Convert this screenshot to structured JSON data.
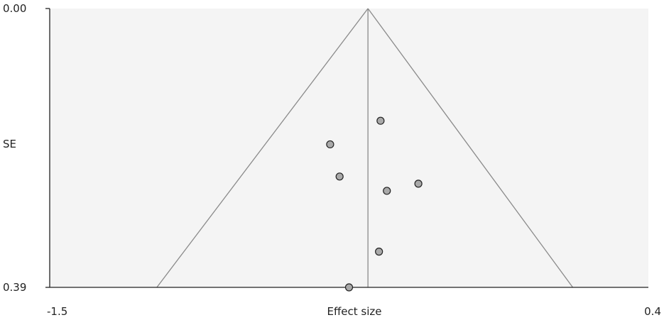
{
  "chart_data": {
    "type": "scatter",
    "title": "",
    "xlabel": "Effect size",
    "ylabel": "SE",
    "xlim": [
      -1.5,
      0.4
    ],
    "ylim": [
      0.0,
      0.39
    ],
    "y_inverted": true,
    "x_tick_labels": [
      "-1.5",
      "0.4"
    ],
    "y_tick_labels": [
      "0.00",
      "0.39"
    ],
    "pooled_effect": -0.49,
    "funnel_lower_x_at_max_se": -1.16,
    "funnel_upper_x_at_max_se": 0.16,
    "grid": false,
    "legend": "none",
    "series": [
      {
        "points": [
          {
            "x": -0.61,
            "y": 0.19
          },
          {
            "x": -0.58,
            "y": 0.235
          },
          {
            "x": -0.45,
            "y": 0.157
          },
          {
            "x": -0.43,
            "y": 0.255
          },
          {
            "x": -0.33,
            "y": 0.245
          },
          {
            "x": -0.455,
            "y": 0.34
          },
          {
            "x": -0.55,
            "y": 0.39
          }
        ]
      }
    ],
    "colors": {
      "plot_background": "#f4f4f4",
      "funnel_line": "#8a8a8a",
      "point_fill": "#a9a9a9",
      "point_stroke": "#222222",
      "axis": "#222222"
    }
  }
}
